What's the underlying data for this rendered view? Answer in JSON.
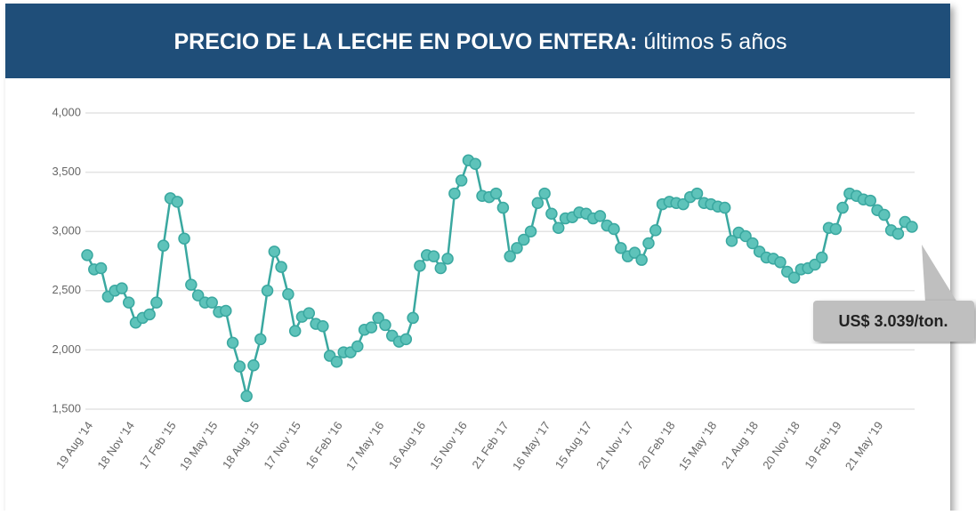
{
  "chart_data": {
    "type": "line",
    "title": "PRECIO DE LA LECHE EN POLVO ENTERA:",
    "subtitle": "últimos 5 años",
    "annotation": "US$ 3.039/ton.",
    "color": "#3aa8a0",
    "marker_color": "#5ec3ba",
    "grid": true,
    "ylim": [
      1500,
      4000
    ],
    "yticks": [
      {
        "value": 1500,
        "label": "1,500"
      },
      {
        "value": 2000,
        "label": "2,000"
      },
      {
        "value": 2500,
        "label": "2,500"
      },
      {
        "value": 3000,
        "label": "3,000"
      },
      {
        "value": 3500,
        "label": "3,500"
      },
      {
        "value": 4000,
        "label": "4,000"
      }
    ],
    "categories": [
      "19 Aug '14",
      null,
      null,
      null,
      null,
      null,
      "18 Nov '14",
      null,
      null,
      null,
      null,
      null,
      "17 Feb '15",
      null,
      null,
      null,
      null,
      null,
      "19 May '15",
      null,
      null,
      null,
      null,
      null,
      "18 Aug '15",
      null,
      null,
      null,
      null,
      null,
      "17 Nov '15",
      null,
      null,
      null,
      null,
      null,
      "16 Feb '16",
      null,
      null,
      null,
      null,
      null,
      "17 May '16",
      null,
      null,
      null,
      null,
      null,
      "16 Aug '16",
      null,
      null,
      null,
      null,
      null,
      "15 Nov '16",
      null,
      null,
      null,
      null,
      null,
      "21 Feb '17",
      null,
      null,
      null,
      null,
      null,
      "16 May '17",
      null,
      null,
      null,
      null,
      null,
      "15 Aug '17",
      null,
      null,
      null,
      null,
      null,
      "21 Nov '17",
      null,
      null,
      null,
      null,
      null,
      "20 Feb '18",
      null,
      null,
      null,
      null,
      null,
      "15 May '18",
      null,
      null,
      null,
      null,
      null,
      "21 Aug '18",
      null,
      null,
      null,
      null,
      null,
      "20 Nov '18",
      null,
      null,
      null,
      null,
      null,
      "19 Feb '19",
      null,
      null,
      null,
      null,
      null,
      "21 May '19",
      null,
      null,
      null,
      null,
      null
    ],
    "values": [
      2800,
      2680,
      2690,
      2450,
      2500,
      2520,
      2400,
      2230,
      2270,
      2300,
      2400,
      2880,
      3280,
      3250,
      2940,
      2550,
      2460,
      2400,
      2400,
      2320,
      2330,
      2060,
      1860,
      1610,
      1870,
      2090,
      2500,
      2830,
      2700,
      2470,
      2160,
      2280,
      2310,
      2220,
      2200,
      1950,
      1900,
      1980,
      1980,
      2030,
      2170,
      2190,
      2270,
      2210,
      2120,
      2070,
      2090,
      2270,
      2710,
      2800,
      2790,
      2690,
      2770,
      3320,
      3430,
      3600,
      3570,
      3300,
      3290,
      3320,
      3200,
      2790,
      2860,
      2930,
      3000,
      3240,
      3320,
      3150,
      3030,
      3110,
      3120,
      3160,
      3150,
      3110,
      3130,
      3050,
      3020,
      2860,
      2790,
      2820,
      2760,
      2900,
      3010,
      3230,
      3250,
      3240,
      3230,
      3290,
      3320,
      3240,
      3230,
      3210,
      3200,
      2920,
      2990,
      2960,
      2900,
      2830,
      2780,
      2770,
      2740,
      2660,
      2610,
      2680,
      2690,
      2720,
      2780,
      3030,
      3020,
      3200,
      3320,
      3300,
      3270,
      3260,
      3180,
      3140,
      3010,
      2980,
      3080,
      3039
    ]
  }
}
